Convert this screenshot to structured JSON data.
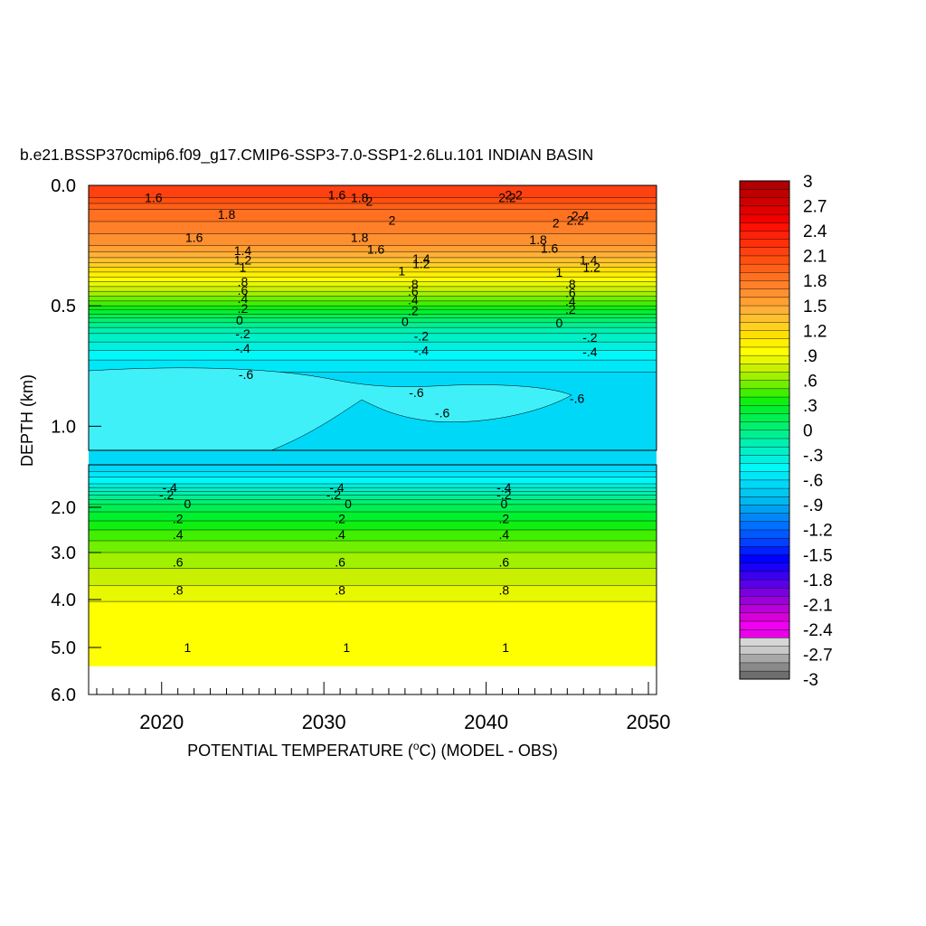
{
  "chart_data": {
    "type": "heatmap",
    "title": "b.e21.BSSP370cmip6.f09_g17.CMIP6-SSP3-7.0-SSP1-2.6Lu.101 INDIAN BASIN",
    "xlabel_pre": "POTENTIAL TEMPERATURE (",
    "xlabel_sup": "o",
    "xlabel_post": "C) (MODEL - OBS)",
    "ylabel": "DEPTH (km)",
    "xlim": [
      2015.5,
      2050.5
    ],
    "x_ticks": [
      2020,
      2030,
      2040,
      2050
    ],
    "x_tick_labels": [
      "2020",
      "2030",
      "2040",
      "2050"
    ],
    "upper_panel": {
      "ylim": [
        0.0,
        1.1
      ],
      "y_ticks": [
        0.0,
        0.5,
        1.0
      ],
      "y_tick_labels": [
        "0.0",
        "0.5",
        "1.0"
      ]
    },
    "lower_panel": {
      "ylim": [
        1.1,
        6.0
      ],
      "y_ticks": [
        2.0,
        3.0,
        4.0,
        5.0,
        6.0
      ],
      "y_tick_labels": [
        "2.0",
        "3.0",
        "4.0",
        "5.0",
        "6.0"
      ]
    },
    "colorbar": {
      "min": -3,
      "max": 3,
      "labels": [
        "3",
        "2.7",
        "2.4",
        "2.1",
        "1.8",
        "1.5",
        "1.2",
        ".9",
        ".6",
        ".3",
        "0",
        "-.3",
        "-.6",
        "-.9",
        "-1.2",
        "-1.5",
        "-1.8",
        "-2.1",
        "-2.4",
        "-2.7",
        "-3"
      ],
      "colors": [
        "#6e6e6e",
        "#8a8a8a",
        "#a8a8a8",
        "#c8c8c8",
        "#d6d6d6",
        "#e800e8",
        "#f000f0",
        "#d800d8",
        "#b800d8",
        "#9a00d8",
        "#7a00e0",
        "#5a00e8",
        "#3a00f0",
        "#1a00f8",
        "#0000ff",
        "#0020ff",
        "#0040ff",
        "#0058ff",
        "#0070ff",
        "#0088f8",
        "#00a0f0",
        "#00b8f0",
        "#00c8f0",
        "#00d8f8",
        "#00e8f8",
        "#00f8f8",
        "#00f0e0",
        "#00f0c8",
        "#00f0b0",
        "#00f090",
        "#00f070",
        "#00f050",
        "#00f030",
        "#10f010",
        "#40f000",
        "#70f000",
        "#a0f000",
        "#c8f000",
        "#e8f800",
        "#ffff00",
        "#fff000",
        "#ffe000",
        "#ffd020",
        "#ffc030",
        "#ffb038",
        "#ffa030",
        "#ff9030",
        "#ff8028",
        "#ff7020",
        "#ff6018",
        "#ff5010",
        "#ff4010",
        "#ff3008",
        "#ff2008",
        "#ff1000",
        "#f00000",
        "#e00000",
        "#d00000",
        "#c00000",
        "#b00000"
      ]
    },
    "depth_profile": [
      {
        "depth": 0.0,
        "value": 2.2
      },
      {
        "depth": 0.05,
        "value": 2.1
      },
      {
        "depth": 0.1,
        "value": 1.9
      },
      {
        "depth": 0.15,
        "value": 1.8
      },
      {
        "depth": 0.2,
        "value": 1.7
      },
      {
        "depth": 0.25,
        "value": 1.6
      },
      {
        "depth": 0.3,
        "value": 1.4
      },
      {
        "depth": 0.35,
        "value": 1.15
      },
      {
        "depth": 0.4,
        "value": 0.9
      },
      {
        "depth": 0.45,
        "value": 0.65
      },
      {
        "depth": 0.5,
        "value": 0.4
      },
      {
        "depth": 0.55,
        "value": 0.1
      },
      {
        "depth": 0.6,
        "value": -0.15
      },
      {
        "depth": 0.65,
        "value": -0.3
      },
      {
        "depth": 0.7,
        "value": -0.45
      },
      {
        "depth": 0.75,
        "value": -0.55
      },
      {
        "depth": 0.8,
        "value": -0.65
      },
      {
        "depth": 1.1,
        "value": -0.7
      },
      {
        "depth": 1.5,
        "value": -0.4
      },
      {
        "depth": 1.75,
        "value": -0.1
      },
      {
        "depth": 2.0,
        "value": 0.15
      },
      {
        "depth": 2.5,
        "value": 0.4
      },
      {
        "depth": 3.0,
        "value": 0.6
      },
      {
        "depth": 3.7,
        "value": 0.8
      },
      {
        "depth": 4.2,
        "value": 0.95
      },
      {
        "depth": 5.5,
        "value": 1.0
      }
    ],
    "contour_labels": [
      {
        "x": 2019.5,
        "depth": 0.05,
        "text": "1.6"
      },
      {
        "x": 2024.0,
        "depth": 0.12,
        "text": "1.8"
      },
      {
        "x": 2022.0,
        "depth": 0.215,
        "text": "1.6"
      },
      {
        "x": 2025.0,
        "depth": 0.27,
        "text": "1.4"
      },
      {
        "x": 2025.0,
        "depth": 0.31,
        "text": "1.2"
      },
      {
        "x": 2025.0,
        "depth": 0.34,
        "text": "1"
      },
      {
        "x": 2025.0,
        "depth": 0.4,
        "text": ".8"
      },
      {
        "x": 2025.0,
        "depth": 0.435,
        "text": ".6"
      },
      {
        "x": 2025.0,
        "depth": 0.47,
        "text": ".4"
      },
      {
        "x": 2025.0,
        "depth": 0.51,
        "text": ".2"
      },
      {
        "x": 2024.8,
        "depth": 0.56,
        "text": "0"
      },
      {
        "x": 2025.0,
        "depth": 0.615,
        "text": "-.2"
      },
      {
        "x": 2025.0,
        "depth": 0.675,
        "text": "-.4"
      },
      {
        "x": 2025.2,
        "depth": 0.785,
        "text": "-.6"
      },
      {
        "x": 2030.8,
        "depth": 0.04,
        "text": "1.6"
      },
      {
        "x": 2032.2,
        "depth": 0.05,
        "text": "1.8"
      },
      {
        "x": 2032.8,
        "depth": 0.065,
        "text": "2"
      },
      {
        "x": 2034.2,
        "depth": 0.145,
        "text": "2"
      },
      {
        "x": 2032.2,
        "depth": 0.215,
        "text": "1.8"
      },
      {
        "x": 2033.2,
        "depth": 0.265,
        "text": "1.6"
      },
      {
        "x": 2036.0,
        "depth": 0.305,
        "text": "1.4"
      },
      {
        "x": 2036.0,
        "depth": 0.325,
        "text": "1.2"
      },
      {
        "x": 2034.8,
        "depth": 0.355,
        "text": "1"
      },
      {
        "x": 2035.5,
        "depth": 0.41,
        "text": ".8"
      },
      {
        "x": 2035.5,
        "depth": 0.44,
        "text": ".6"
      },
      {
        "x": 2035.5,
        "depth": 0.475,
        "text": ".4"
      },
      {
        "x": 2035.5,
        "depth": 0.52,
        "text": ".2"
      },
      {
        "x": 2035.0,
        "depth": 0.565,
        "text": "0"
      },
      {
        "x": 2036.0,
        "depth": 0.625,
        "text": "-.2"
      },
      {
        "x": 2036.0,
        "depth": 0.685,
        "text": "-.4"
      },
      {
        "x": 2035.7,
        "depth": 0.86,
        "text": "-.6"
      },
      {
        "x": 2037.3,
        "depth": 0.945,
        "text": "-.6"
      },
      {
        "x": 2041.7,
        "depth": 0.04,
        "text": "2.2"
      },
      {
        "x": 2041.3,
        "depth": 0.05,
        "text": "2.2"
      },
      {
        "x": 2044.3,
        "depth": 0.155,
        "text": "2"
      },
      {
        "x": 2043.2,
        "depth": 0.225,
        "text": "1.8"
      },
      {
        "x": 2043.9,
        "depth": 0.26,
        "text": "1.6"
      },
      {
        "x": 2045.8,
        "depth": 0.125,
        "text": "2.4"
      },
      {
        "x": 2045.5,
        "depth": 0.145,
        "text": "2.2"
      },
      {
        "x": 2046.3,
        "depth": 0.31,
        "text": "1.4"
      },
      {
        "x": 2046.5,
        "depth": 0.34,
        "text": "1.2"
      },
      {
        "x": 2044.5,
        "depth": 0.36,
        "text": "1"
      },
      {
        "x": 2045.2,
        "depth": 0.41,
        "text": ".8"
      },
      {
        "x": 2045.2,
        "depth": 0.445,
        "text": ".6"
      },
      {
        "x": 2045.2,
        "depth": 0.48,
        "text": ".4"
      },
      {
        "x": 2045.2,
        "depth": 0.515,
        "text": ".2"
      },
      {
        "x": 2044.5,
        "depth": 0.57,
        "text": "0"
      },
      {
        "x": 2046.4,
        "depth": 0.63,
        "text": "-.2"
      },
      {
        "x": 2046.4,
        "depth": 0.69,
        "text": "-.4"
      },
      {
        "x": 2045.6,
        "depth": 0.885,
        "text": "-.6"
      },
      {
        "x": 2020.5,
        "depth": 1.58,
        "text": "-.4"
      },
      {
        "x": 2020.3,
        "depth": 1.73,
        "text": "-.2"
      },
      {
        "x": 2021.6,
        "depth": 1.92,
        "text": "0"
      },
      {
        "x": 2021.0,
        "depth": 2.25,
        "text": ".2"
      },
      {
        "x": 2021.0,
        "depth": 2.6,
        "text": ".4"
      },
      {
        "x": 2021.0,
        "depth": 3.2,
        "text": ".6"
      },
      {
        "x": 2021.0,
        "depth": 3.8,
        "text": ".8"
      },
      {
        "x": 2021.6,
        "depth": 5.0,
        "text": "1"
      },
      {
        "x": 2030.8,
        "depth": 1.58,
        "text": "-.4"
      },
      {
        "x": 2030.6,
        "depth": 1.73,
        "text": "-.2"
      },
      {
        "x": 2031.5,
        "depth": 1.92,
        "text": "0"
      },
      {
        "x": 2031.0,
        "depth": 2.25,
        "text": ".2"
      },
      {
        "x": 2031.0,
        "depth": 2.6,
        "text": ".4"
      },
      {
        "x": 2031.0,
        "depth": 3.2,
        "text": ".6"
      },
      {
        "x": 2031.0,
        "depth": 3.8,
        "text": ".8"
      },
      {
        "x": 2031.4,
        "depth": 5.0,
        "text": "1"
      },
      {
        "x": 2041.1,
        "depth": 1.58,
        "text": "-.4"
      },
      {
        "x": 2041.1,
        "depth": 1.73,
        "text": "-.2"
      },
      {
        "x": 2041.1,
        "depth": 1.92,
        "text": "0"
      },
      {
        "x": 2041.1,
        "depth": 2.25,
        "text": ".2"
      },
      {
        "x": 2041.1,
        "depth": 2.6,
        "text": ".4"
      },
      {
        "x": 2041.1,
        "depth": 3.2,
        "text": ".6"
      },
      {
        "x": 2041.1,
        "depth": 3.8,
        "text": ".8"
      },
      {
        "x": 2041.2,
        "depth": 5.0,
        "text": "1"
      }
    ]
  }
}
